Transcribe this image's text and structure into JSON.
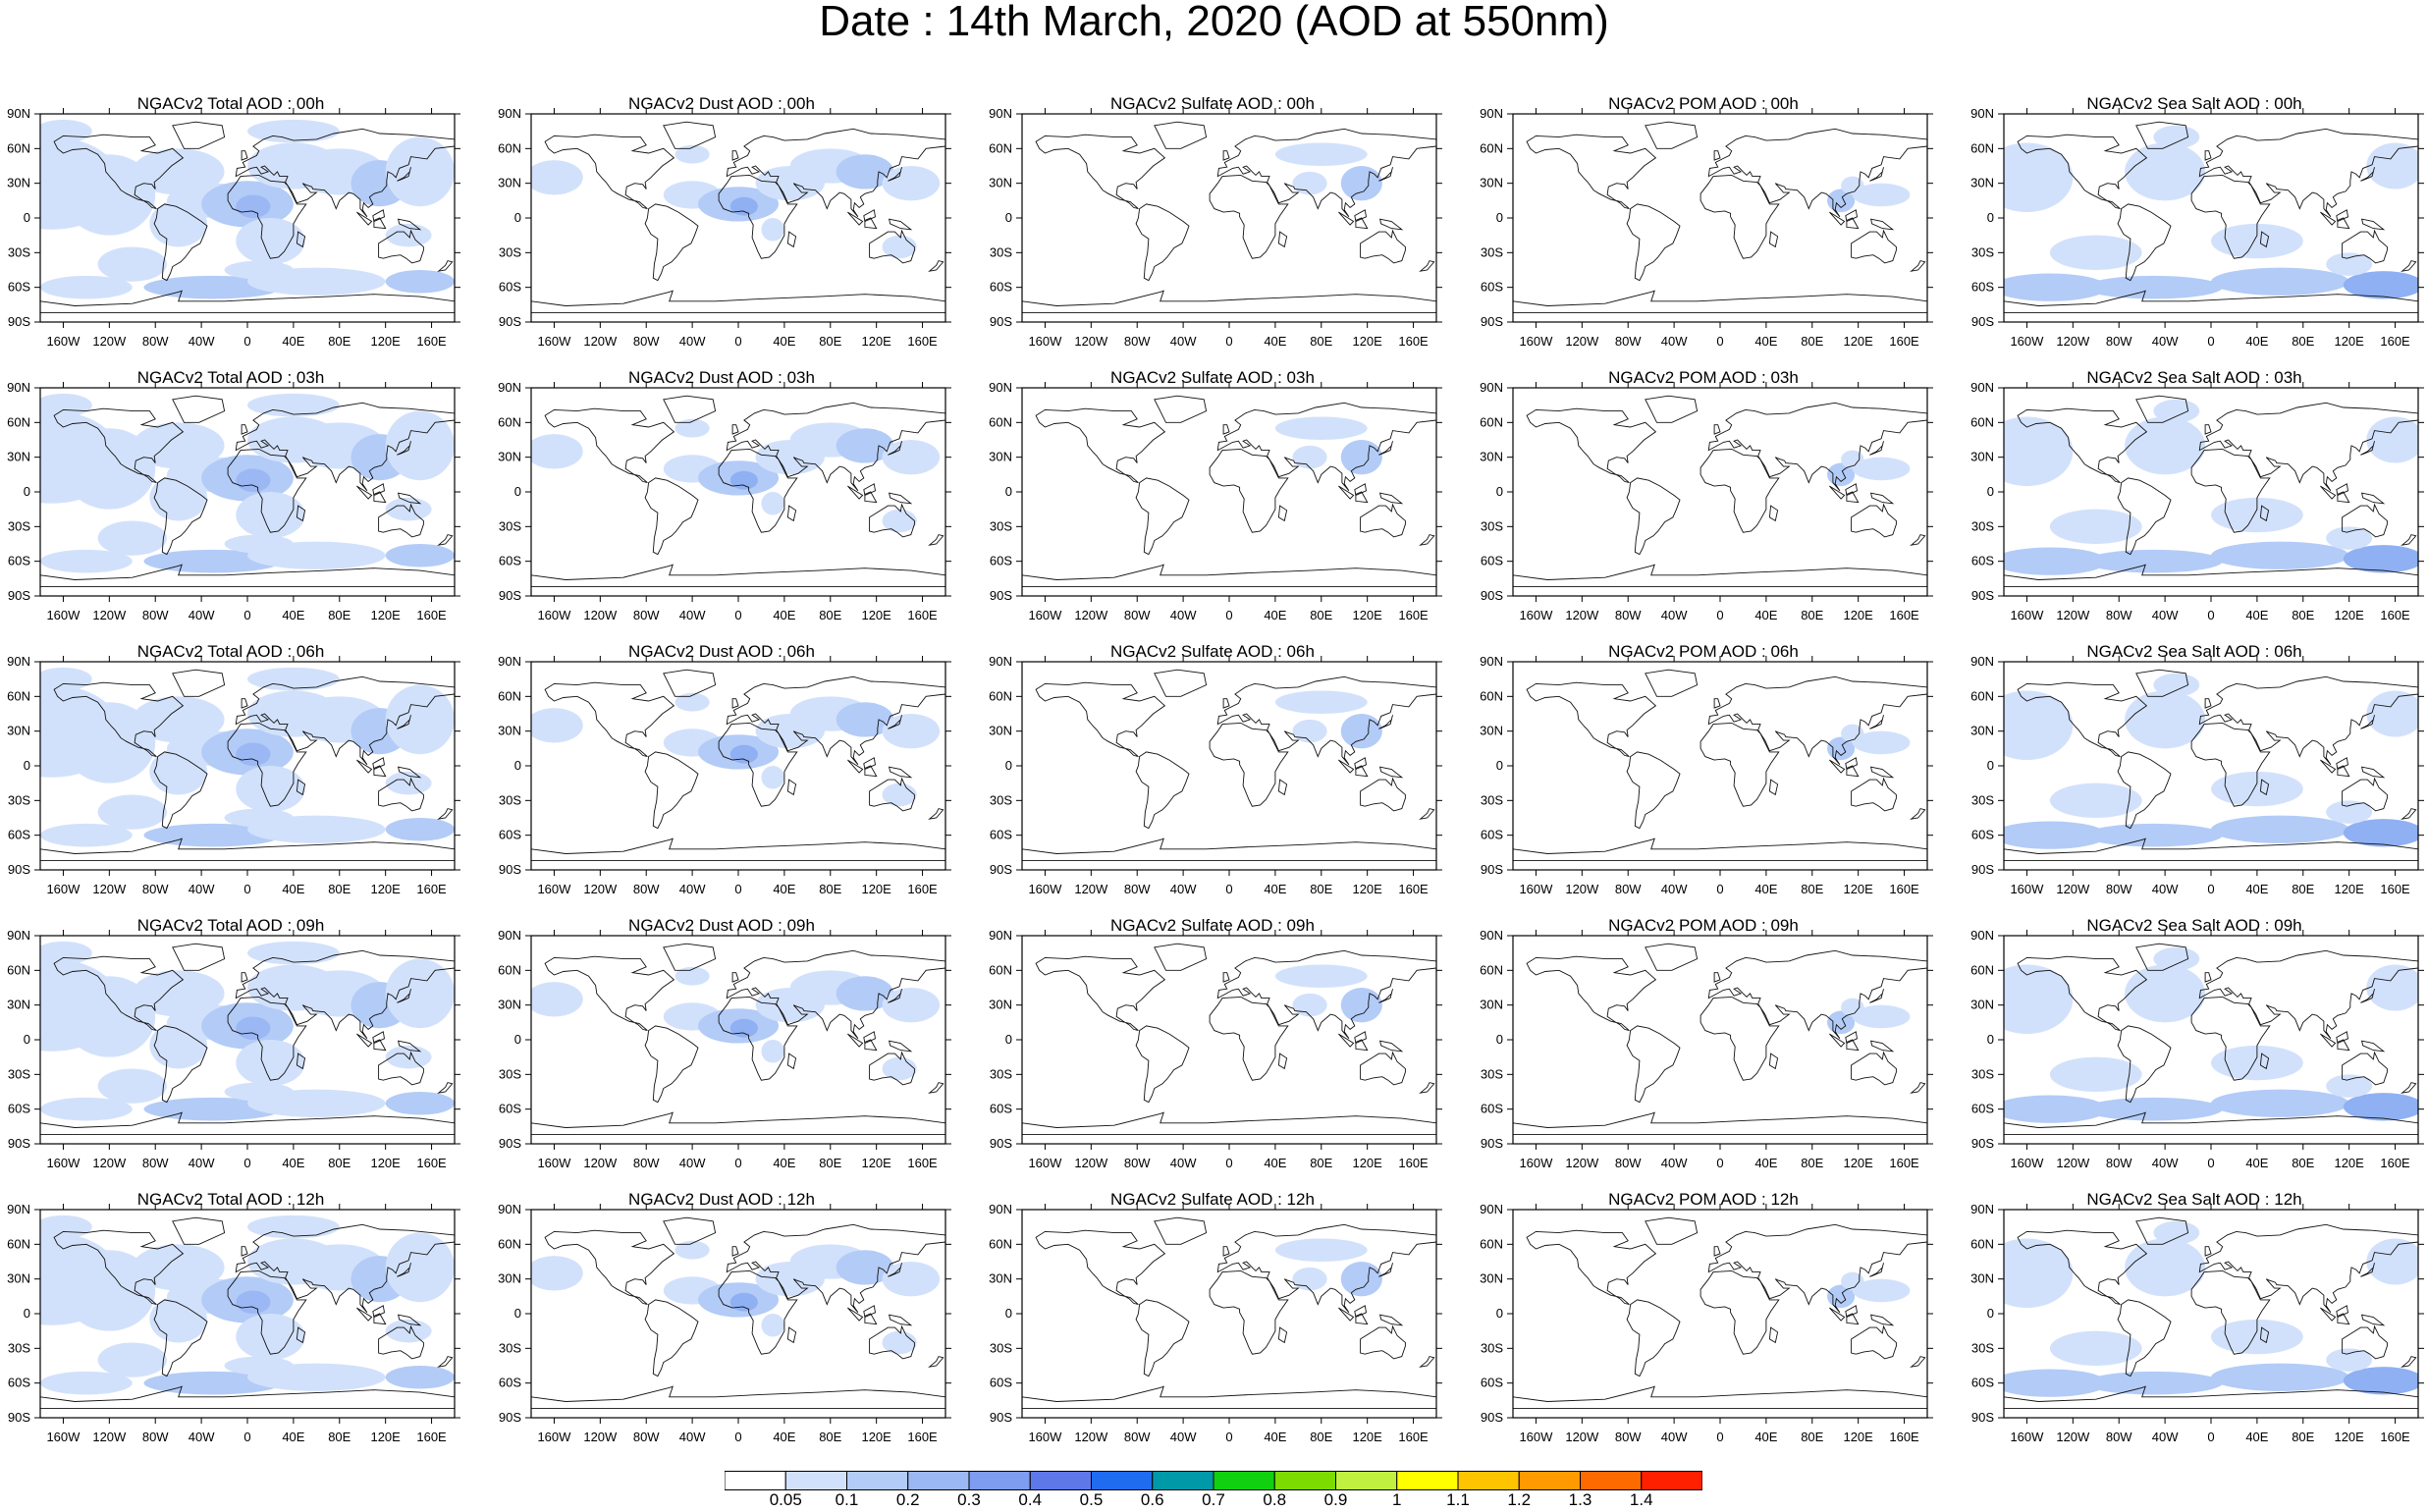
{
  "title": "Date : 14th March, 2020 (AOD at 550nm)",
  "axis": {
    "lon_ticks": [
      "160W",
      "120W",
      "80W",
      "40W",
      "0",
      "40E",
      "80E",
      "120E",
      "160E"
    ],
    "lat_ticks": [
      "90N",
      "60N",
      "30N",
      "0",
      "30S",
      "60S",
      "90S"
    ]
  },
  "species": [
    {
      "key": "total",
      "colors": [
        "#d2e1fb",
        "#b3cbf7",
        "#9cb8f4"
      ]
    },
    {
      "key": "dust",
      "colors": [
        "#d2e1fb",
        "#b3cbf7",
        "#8fb0f3"
      ]
    },
    {
      "key": "sulfate",
      "colors": [
        "#d2e1fb",
        "#b3cbf7"
      ]
    },
    {
      "key": "pom",
      "colors": [
        "#d2e1fb",
        "#b3cbf7"
      ]
    },
    {
      "key": "seasalt",
      "colors": [
        "#d2e1fb",
        "#b3cbf7",
        "#8fb0f3"
      ]
    }
  ],
  "panels": [
    [
      "NGACv2 Total AOD : 00h",
      "NGACv2 Dust AOD : 00h",
      "NGACv2 Sulfate AOD : 00h",
      "NGACv2 POM AOD : 00h",
      "NGACv2 Sea Salt AOD : 00h"
    ],
    [
      "NGACv2 Total AOD : 03h",
      "NGACv2 Dust AOD : 03h",
      "NGACv2 Sulfate AOD : 03h",
      "NGACv2 POM AOD : 03h",
      "NGACv2 Sea Salt AOD : 03h"
    ],
    [
      "NGACv2 Total AOD : 06h",
      "NGACv2 Dust AOD : 06h",
      "NGACv2 Sulfate AOD : 06h",
      "NGACv2 POM AOD : 06h",
      "NGACv2 Sea Salt AOD : 06h"
    ],
    [
      "NGACv2 Total AOD : 09h",
      "NGACv2 Dust AOD : 09h",
      "NGACv2 Sulfate AOD : 09h",
      "NGACv2 POM AOD : 09h",
      "NGACv2 Sea Salt  AOD : 09h"
    ],
    [
      "NGACv2 Total AOD  : 12h",
      "NGACv2 Dust AOD : 12h",
      "NGACv2 Sulfate AOD : 12h",
      "NGACv2 POM  AOD : 12h",
      "NGACv2 Sea Salt AOD : 12h"
    ]
  ],
  "colorbar": {
    "labels": [
      "0.05",
      "0.1",
      "0.2",
      "0.3",
      "0.4",
      "0.5",
      "0.6",
      "0.7",
      "0.8",
      "0.9",
      "1",
      "1.1",
      "1.2",
      "1.3",
      "1.4"
    ],
    "colors": [
      "#ffffff",
      "#d2e1fb",
      "#b3cbf7",
      "#9cb8f4",
      "#7e9cf0",
      "#5e78ea",
      "#1f6cf0",
      "#0099a8",
      "#10d010",
      "#7cdc00",
      "#c0f040",
      "#ffff00",
      "#ffc400",
      "#ff9a00",
      "#ff6a00",
      "#ff2000"
    ]
  }
}
